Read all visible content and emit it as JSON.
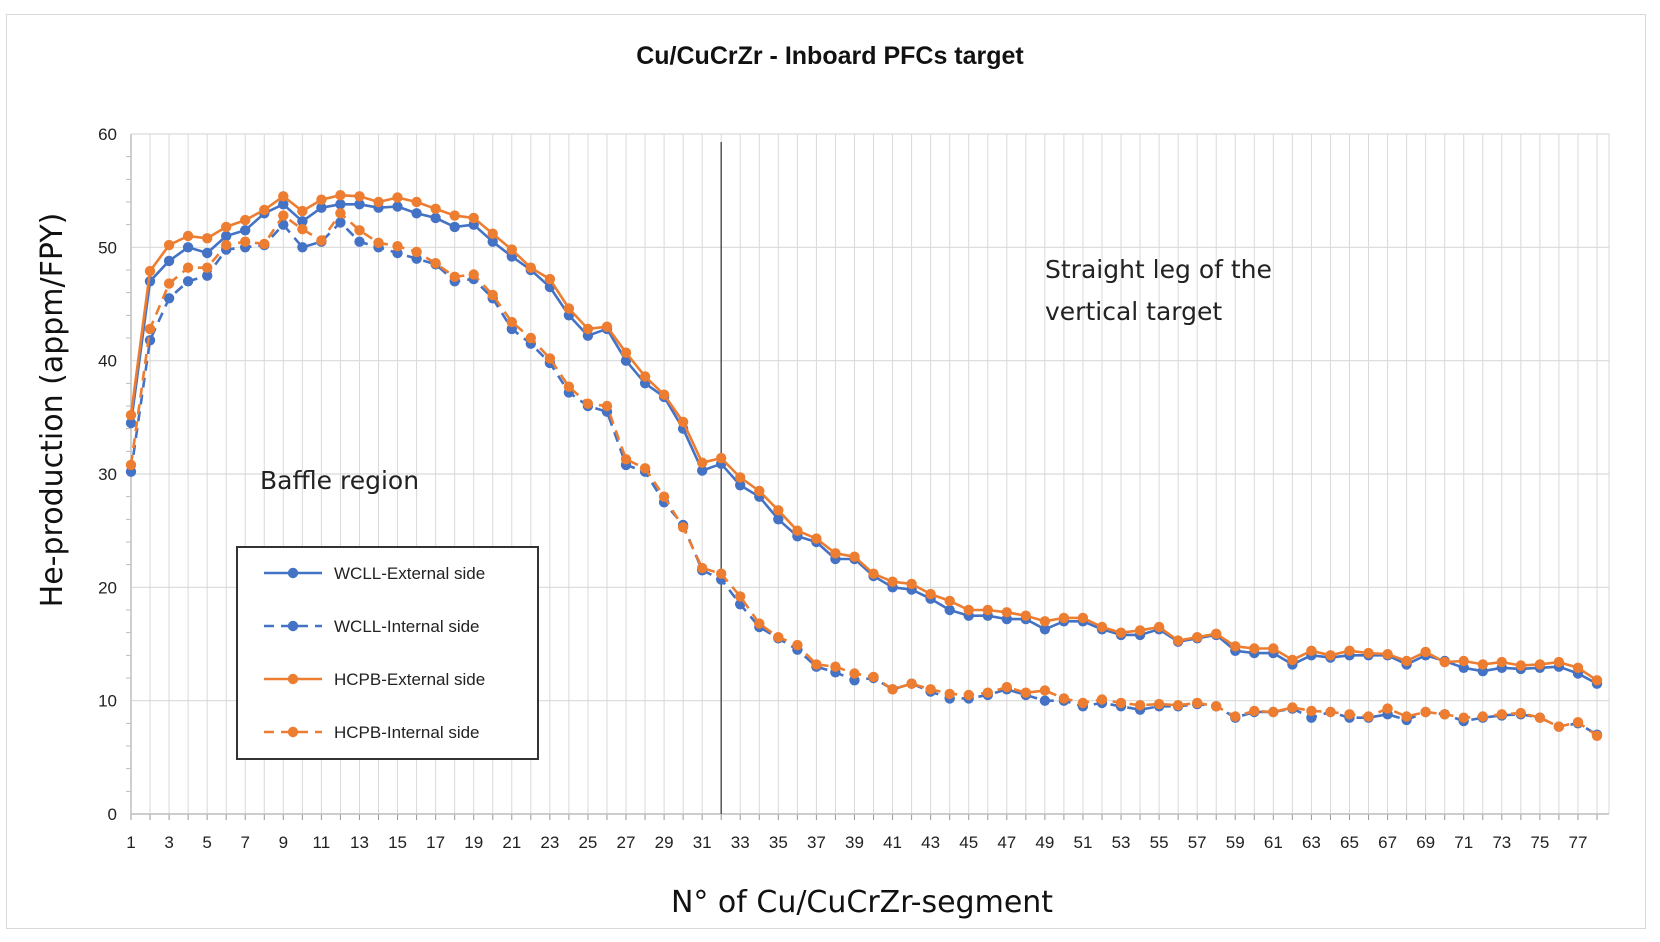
{
  "chart_data": {
    "type": "line",
    "title": "Cu/CuCrZr - Inboard PFCs target",
    "xlabel": "N° of Cu/CuCrZr-segment",
    "ylabel": "He-production  (appm/FPY)",
    "xlim": [
      1,
      78
    ],
    "ylim": [
      0,
      60
    ],
    "yticks": [
      0,
      10,
      20,
      30,
      40,
      50,
      60
    ],
    "xtick_labels": [
      "1",
      "3",
      "5",
      "7",
      "9",
      "11",
      "13",
      "15",
      "17",
      "19",
      "21",
      "23",
      "25",
      "27",
      "29",
      "31",
      "33",
      "35",
      "37",
      "39",
      "41",
      "43",
      "45",
      "47",
      "49",
      "51",
      "53",
      "55",
      "57",
      "59",
      "61",
      "63",
      "65",
      "67",
      "69",
      "71",
      "73",
      "75",
      "77"
    ],
    "vertical_marker_x": 32,
    "annotations": [
      {
        "text": "Baffle region"
      },
      {
        "text": "Straight leg of the"
      },
      {
        "text": "vertical target"
      }
    ],
    "legend_position": "bottom-left",
    "colors": {
      "wcll": "#4472C4",
      "hcpb": "#ED7D31",
      "grid": "#d9d9d9",
      "marker_line": "#555555"
    },
    "x": [
      1,
      2,
      3,
      4,
      5,
      6,
      7,
      8,
      9,
      10,
      11,
      12,
      13,
      14,
      15,
      16,
      17,
      18,
      19,
      20,
      21,
      22,
      23,
      24,
      25,
      26,
      27,
      28,
      29,
      30,
      31,
      32,
      33,
      34,
      35,
      36,
      37,
      38,
      39,
      40,
      41,
      42,
      43,
      44,
      45,
      46,
      47,
      48,
      49,
      50,
      51,
      52,
      53,
      54,
      55,
      56,
      57,
      58,
      59,
      60,
      61,
      62,
      63,
      64,
      65,
      66,
      67,
      68,
      69,
      70,
      71,
      72,
      73,
      74,
      75,
      76,
      77,
      78
    ],
    "series": [
      {
        "name": "WCLL-External side",
        "color": "#4472C4",
        "dashed": false,
        "values": [
          34.5,
          47.0,
          48.8,
          50.0,
          49.5,
          51.0,
          51.5,
          53.0,
          53.8,
          52.3,
          53.5,
          53.8,
          53.8,
          53.5,
          53.6,
          53.0,
          52.6,
          51.8,
          52.0,
          50.5,
          49.2,
          48.0,
          46.5,
          44.0,
          42.2,
          42.8,
          40.0,
          38.0,
          36.8,
          34.0,
          30.3,
          30.9,
          29.0,
          28.0,
          26.0,
          24.5,
          24.0,
          22.5,
          22.5,
          21.0,
          20.0,
          19.8,
          19.0,
          18.0,
          17.5,
          17.5,
          17.2,
          17.2,
          16.3,
          17.0,
          17.0,
          16.3,
          15.8,
          15.8,
          16.3,
          15.2,
          15.5,
          15.8,
          14.4,
          14.2,
          14.2,
          13.2,
          14.0,
          13.8,
          14.0,
          14.0,
          14.0,
          13.2,
          14.0,
          13.5,
          12.9,
          12.6,
          12.9,
          12.8,
          12.9,
          13.0,
          12.4,
          11.5
        ]
      },
      {
        "name": "WCLL-Internal side",
        "color": "#4472C4",
        "dashed": true,
        "values": [
          30.2,
          41.8,
          45.5,
          47.0,
          47.5,
          49.8,
          50.0,
          50.2,
          52.0,
          50.0,
          50.5,
          52.2,
          50.5,
          50.0,
          49.5,
          49.0,
          48.5,
          47.0,
          47.2,
          45.5,
          42.8,
          41.5,
          39.8,
          37.2,
          36.0,
          35.5,
          30.8,
          30.2,
          27.5,
          25.5,
          21.5,
          20.7,
          18.5,
          16.5,
          15.5,
          14.5,
          13.0,
          12.5,
          11.8,
          12.0,
          11.0,
          11.5,
          10.8,
          10.2,
          10.2,
          10.5,
          11.0,
          10.5,
          10.0,
          10.0,
          9.5,
          9.8,
          9.5,
          9.2,
          9.5,
          9.5,
          9.7,
          9.5,
          8.5,
          9.0,
          9.0,
          9.3,
          8.5,
          9.0,
          8.5,
          8.5,
          8.8,
          8.3,
          9.0,
          8.8,
          8.2,
          8.5,
          8.7,
          8.8,
          8.5,
          7.7,
          8.0,
          7.0
        ]
      },
      {
        "name": "HCPB-External side",
        "color": "#ED7D31",
        "dashed": false,
        "values": [
          35.2,
          47.9,
          50.2,
          51.0,
          50.8,
          51.8,
          52.4,
          53.3,
          54.5,
          53.2,
          54.2,
          54.6,
          54.5,
          54.0,
          54.4,
          54.0,
          53.4,
          52.8,
          52.6,
          51.2,
          49.8,
          48.2,
          47.2,
          44.6,
          42.8,
          43.0,
          40.7,
          38.6,
          37.0,
          34.6,
          31.0,
          31.4,
          29.7,
          28.5,
          26.8,
          25.0,
          24.3,
          23.0,
          22.7,
          21.2,
          20.5,
          20.3,
          19.4,
          18.8,
          18.0,
          18.0,
          17.8,
          17.5,
          17.0,
          17.3,
          17.3,
          16.5,
          16.0,
          16.2,
          16.5,
          15.3,
          15.6,
          15.9,
          14.8,
          14.6,
          14.6,
          13.6,
          14.4,
          14.0,
          14.4,
          14.2,
          14.1,
          13.5,
          14.3,
          13.4,
          13.5,
          13.2,
          13.4,
          13.1,
          13.2,
          13.4,
          12.9,
          11.8
        ]
      },
      {
        "name": "HCPB-Internal side",
        "color": "#ED7D31",
        "dashed": true,
        "values": [
          30.8,
          42.8,
          46.8,
          48.2,
          48.2,
          50.2,
          50.5,
          50.3,
          52.8,
          51.6,
          50.6,
          53.0,
          51.5,
          50.4,
          50.1,
          49.6,
          48.6,
          47.4,
          47.6,
          45.8,
          43.4,
          42.0,
          40.2,
          37.7,
          36.2,
          36.0,
          31.3,
          30.5,
          28.0,
          25.3,
          21.7,
          21.2,
          19.2,
          16.8,
          15.6,
          14.9,
          13.2,
          13.0,
          12.4,
          12.1,
          11.0,
          11.5,
          11.0,
          10.6,
          10.5,
          10.7,
          11.2,
          10.7,
          10.9,
          10.2,
          9.8,
          10.1,
          9.8,
          9.6,
          9.7,
          9.6,
          9.8,
          9.5,
          8.6,
          9.1,
          9.0,
          9.4,
          9.1,
          9.0,
          8.8,
          8.6,
          9.3,
          8.6,
          9.0,
          8.8,
          8.5,
          8.6,
          8.8,
          8.9,
          8.5,
          7.7,
          8.1,
          6.9
        ]
      }
    ]
  }
}
